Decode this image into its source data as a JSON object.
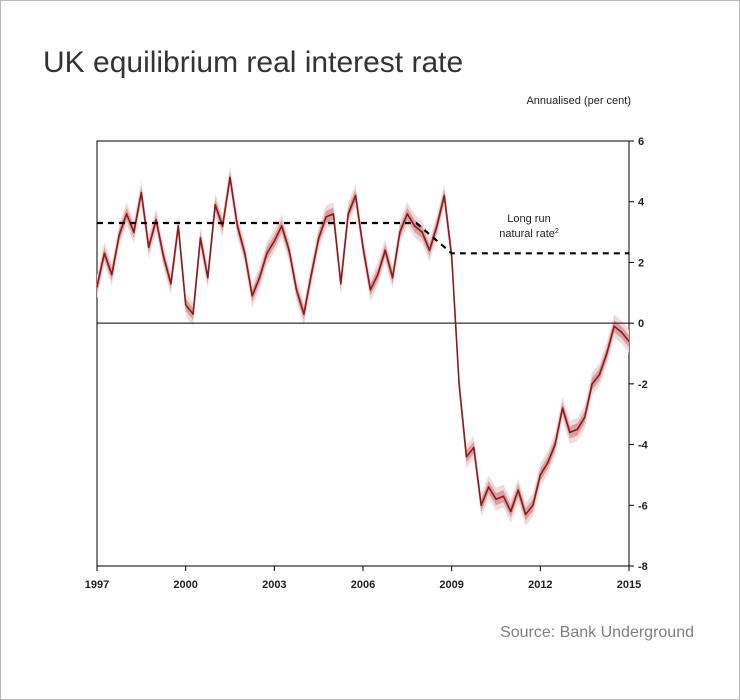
{
  "chart_data": {
    "type": "line",
    "title": "UK equilibrium real interest rate",
    "ylabel": "Annualised  (per cent)",
    "source": "Source: Bank Underground",
    "xlim": [
      1997,
      2015
    ],
    "ylim": [
      -8,
      6
    ],
    "y_axis_side": "right",
    "x_ticks": [
      1997,
      2000,
      2003,
      2006,
      2009,
      2012,
      2015
    ],
    "y_ticks": [
      6,
      4,
      2,
      0,
      -2,
      -4,
      -6,
      -8
    ],
    "x_tick_labels": [
      "1997",
      "2000",
      "2003",
      "2006",
      "2009",
      "2012",
      "2015"
    ],
    "y_tick_labels": [
      "6",
      "4",
      "2",
      "0",
      "-2",
      "-4",
      "-6",
      "-8"
    ],
    "grid": false,
    "zero_line": true,
    "annotation": {
      "line1": "Long run",
      "line2": "natural rate",
      "superscript": "2",
      "at": [
        2009.9,
        3.2
      ]
    },
    "colors": {
      "central": "#8b1a1a",
      "band_inner": "#d8a0a0",
      "band_outer": "#f2dada",
      "long_run": "#000000"
    },
    "series": [
      {
        "style": "fan",
        "x": [
          1997.0,
          1997.25,
          1997.5,
          1997.75,
          1998.0,
          1998.25,
          1998.5,
          1998.75,
          1999.0,
          1999.25,
          1999.5,
          1999.75,
          2000.0,
          2000.25,
          2000.5,
          2000.75,
          2001.0,
          2001.25,
          2001.5,
          2001.75,
          2002.0,
          2002.25,
          2002.5,
          2002.75,
          2003.0,
          2003.25,
          2003.5,
          2003.75,
          2004.0,
          2004.25,
          2004.5,
          2004.75,
          2005.0,
          2005.25,
          2005.5,
          2005.75,
          2006.0,
          2006.25,
          2006.5,
          2006.75,
          2007.0,
          2007.25,
          2007.5,
          2007.75,
          2008.0,
          2008.25,
          2008.5,
          2008.75,
          2009.0,
          2009.25,
          2009.5,
          2009.75,
          2010.0,
          2010.25,
          2010.5,
          2010.75,
          2011.0,
          2011.25,
          2011.5,
          2011.75,
          2012.0,
          2012.25,
          2012.5,
          2012.75,
          2013.0,
          2013.25,
          2013.5,
          2013.75,
          2014.0,
          2014.25,
          2014.5,
          2014.75,
          2015.0
        ],
        "y": [
          1.2,
          2.3,
          1.6,
          2.9,
          3.6,
          3.0,
          4.3,
          2.5,
          3.4,
          2.2,
          1.3,
          3.2,
          0.6,
          0.3,
          2.8,
          1.5,
          3.9,
          3.2,
          4.8,
          3.2,
          2.3,
          0.9,
          1.5,
          2.3,
          2.7,
          3.2,
          2.4,
          1.1,
          0.3,
          1.6,
          2.8,
          3.5,
          3.6,
          1.3,
          3.6,
          4.2,
          2.5,
          1.1,
          1.6,
          2.4,
          1.5,
          3.0,
          3.6,
          3.2,
          3.0,
          2.4,
          3.2,
          4.2,
          2.2,
          -2.0,
          -4.4,
          -4.1,
          -6.0,
          -5.4,
          -5.8,
          -5.7,
          -6.2,
          -5.5,
          -6.3,
          -6.0,
          -5.0,
          -4.6,
          -4.0,
          -2.8,
          -3.6,
          -3.5,
          -3.1,
          -2.0,
          -1.7,
          -1.0,
          -0.1,
          -0.3,
          -0.6
        ]
      },
      {
        "style": "dashed",
        "x": [
          1997.0,
          2007.8,
          2009.0,
          2015.0
        ],
        "y": [
          3.3,
          3.3,
          2.3,
          2.3
        ]
      }
    ]
  }
}
